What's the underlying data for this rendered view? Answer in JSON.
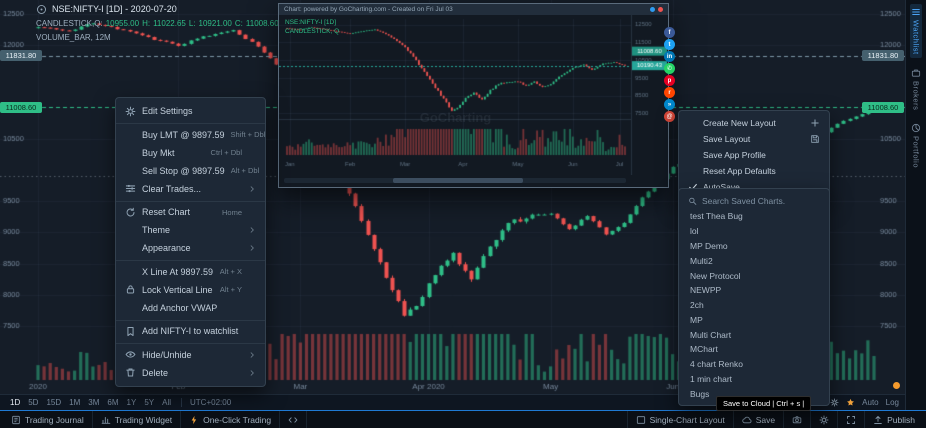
{
  "header": {
    "symbol": "NSE:NIFTY-I [1D] - 2020-07-20",
    "series_label": "CANDLESTICK,Q:",
    "ohlc": {
      "open": "10955.00",
      "h_label": "H:",
      "high": "11022.65",
      "l_label": "L:",
      "low": "10921.00",
      "c_label": "C:",
      "close": "11008.60"
    },
    "volume_line": "VOLUME_BAR, 12M"
  },
  "chart_data": {
    "type": "candlestick",
    "symbol": "NSE:NIFTY-I",
    "interval": "1D",
    "days": 138,
    "x_ticks": [
      {
        "label": "2020",
        "day": 0
      },
      {
        "label": "Feb",
        "day": 23
      },
      {
        "label": "Mar",
        "day": 43
      },
      {
        "label": "Apr 2020",
        "day": 64
      },
      {
        "label": "May",
        "day": 84
      },
      {
        "label": "Jun",
        "day": 104
      }
    ],
    "y_ticks": [
      "12500",
      "12000",
      "10500",
      "9500",
      "9000",
      "8500",
      "8000",
      "7500"
    ],
    "price_range": [
      7500,
      12500
    ],
    "anchors": [
      [
        0,
        12300
      ],
      [
        5,
        12220
      ],
      [
        9,
        12360
      ],
      [
        14,
        12240
      ],
      [
        18,
        12120
      ],
      [
        23,
        12000
      ],
      [
        27,
        12130
      ],
      [
        32,
        12240
      ],
      [
        36,
        11980
      ],
      [
        40,
        11600
      ],
      [
        43,
        11250
      ],
      [
        47,
        10480
      ],
      [
        51,
        9600
      ],
      [
        54,
        8950
      ],
      [
        57,
        8300
      ],
      [
        60,
        7650
      ],
      [
        62,
        7800
      ],
      [
        65,
        8350
      ],
      [
        68,
        8650
      ],
      [
        71,
        8280
      ],
      [
        74,
        8800
      ],
      [
        77,
        9150
      ],
      [
        81,
        9270
      ],
      [
        84,
        9300
      ],
      [
        87,
        9050
      ],
      [
        90,
        9280
      ],
      [
        93,
        8980
      ],
      [
        96,
        9150
      ],
      [
        99,
        9550
      ],
      [
        104,
        10050
      ],
      [
        108,
        10250
      ],
      [
        111,
        9950
      ],
      [
        115,
        10300
      ],
      [
        119,
        10380
      ],
      [
        123,
        10180
      ],
      [
        127,
        10450
      ],
      [
        131,
        10740
      ],
      [
        134,
        10850
      ],
      [
        137,
        11008.6
      ]
    ],
    "levels": [
      {
        "price": 11831.8,
        "label": "11831.80",
        "line_color": "#7d97a6",
        "badge_bg": "#45606e",
        "badge_fg": "#eaf2f8"
      },
      {
        "price": 11008.6,
        "label": "11008.60",
        "line_color": "#2fbe87",
        "badge_bg": "#2fbe87",
        "badge_fg": "#08291c"
      },
      {
        "price": 9897.59,
        "label": "",
        "line_color": "rgba(205,220,235,0.35)"
      }
    ],
    "colors": {
      "up": "#2fbe87",
      "down": "#ef5350",
      "vol_up": "rgba(47,190,135,0.5)",
      "vol_down": "rgba(239,83,80,0.45)",
      "grid": "rgba(141,172,199,0.06)",
      "axis_text": "#76879a"
    },
    "popup_chart": {
      "days": 124,
      "y_ticks": [
        12500,
        11500,
        10500,
        9500,
        8500,
        7500
      ],
      "x_ticks": [
        {
          "label": "Jan",
          "day": 1
        },
        {
          "label": "Feb",
          "day": 23
        },
        {
          "label": "Mar",
          "day": 43
        },
        {
          "label": "Apr",
          "day": 64
        },
        {
          "label": "May",
          "day": 84
        },
        {
          "label": "Jun",
          "day": 104
        },
        {
          "label": "Jul",
          "day": 121
        }
      ]
    }
  },
  "context_menu": {
    "items": [
      {
        "icon": "gear",
        "label": "Edit Settings"
      },
      {
        "label": "Buy LMT @ 9897.59",
        "shortcut": "Shift + Dbl",
        "sep": true
      },
      {
        "label": "Buy Mkt",
        "shortcut": "Ctrl + Dbl"
      },
      {
        "label": "Sell Stop @ 9897.59",
        "shortcut": "Alt + Dbl"
      },
      {
        "icon": "sliders",
        "label": "Clear Trades...",
        "arrow": true
      },
      {
        "icon": "reset",
        "label": "Reset Chart",
        "shortcut": "Home",
        "sep": true
      },
      {
        "label": "Theme",
        "arrow": true
      },
      {
        "label": "Appearance",
        "arrow": true
      },
      {
        "label": "X Line At 9897.59",
        "shortcut": "Alt + X",
        "sep": true
      },
      {
        "icon": "lock",
        "label": "Lock Vertical Line",
        "shortcut": "Alt + Y"
      },
      {
        "label": "Add Anchor VWAP"
      },
      {
        "icon": "bookmark",
        "label": "Add NIFTY-I to watchlist",
        "sep": true
      },
      {
        "icon": "eye",
        "label": "Hide/Unhide",
        "arrow": true,
        "sep": true
      },
      {
        "icon": "trash",
        "label": "Delete",
        "arrow": true
      }
    ]
  },
  "layout_menu": {
    "items": [
      {
        "label": "Create New Layout",
        "end_icon": "plus"
      },
      {
        "label": "Save Layout",
        "end_icon": "save"
      },
      {
        "label": "Save App Profile"
      },
      {
        "label": "Reset App Defaults"
      },
      {
        "icon": "check",
        "label": "AutoSave"
      }
    ]
  },
  "saved_charts": {
    "search_placeholder": "Search Saved Charts.",
    "items": [
      "test Thea Bug",
      "lol",
      "MP Demo",
      "Multi2",
      "New Protocol",
      "NEWPP",
      "2ch",
      "MP",
      "Multi Chart",
      "MChart",
      "4 chart Renko",
      "1 min chart",
      "Bugs"
    ]
  },
  "popup": {
    "title": "Chart: powered by GoCharting.com - Created on Fri Jul 03",
    "legend1": "NSE:NIFTY-I [1D]",
    "legend2": "CANDLESTICK, Q",
    "watermark": "GoCharting"
  },
  "share_icons": [
    {
      "name": "facebook-icon",
      "glyph": "f",
      "bg": "#3b5998"
    },
    {
      "name": "twitter-icon",
      "glyph": "t",
      "bg": "#1da1f2"
    },
    {
      "name": "linkedin-icon",
      "glyph": "in",
      "bg": "#0077b5"
    },
    {
      "name": "whatsapp-icon",
      "glyph": "✆",
      "bg": "#25d366"
    },
    {
      "name": "pinterest-icon",
      "glyph": "p",
      "bg": "#e60023"
    },
    {
      "name": "reddit-icon",
      "glyph": "r",
      "bg": "#ff4500"
    },
    {
      "name": "telegram-icon",
      "glyph": "»",
      "bg": "#0088cc"
    },
    {
      "name": "mail-icon",
      "glyph": "@",
      "bg": "#d44638"
    }
  ],
  "sidebar": {
    "tabs": [
      {
        "icon": "list",
        "label": "Watchlist",
        "active": true
      },
      {
        "icon": "briefcase",
        "label": "Brokers"
      },
      {
        "icon": "pie",
        "label": "Portfolio"
      }
    ]
  },
  "timeframe_bar": {
    "ranges": [
      {
        "label": "1D",
        "active": true
      },
      {
        "label": "5D"
      },
      {
        "label": "15D"
      },
      {
        "label": "1M"
      },
      {
        "label": "3M"
      },
      {
        "label": "6M"
      },
      {
        "label": "1Y"
      },
      {
        "label": "5Y"
      },
      {
        "label": "All"
      }
    ],
    "timezone": "UTC+02:00",
    "auto_label": "Auto",
    "log_label": "Log"
  },
  "status_bar": {
    "left": [
      {
        "icon": "journal",
        "label": "Trading Journal"
      },
      {
        "icon": "widget",
        "label": "Trading Widget"
      },
      {
        "icon": "bolt",
        "label": "One-Click Trading",
        "color": "#f2a33c"
      },
      {
        "icon": "code",
        "label": ""
      }
    ],
    "right": [
      {
        "icon": "layout",
        "label": "Single-Chart Layout"
      },
      {
        "icon": "cloud",
        "label": "Save"
      },
      {
        "icon": "camera",
        "label": ""
      },
      {
        "icon": "gear",
        "label": ""
      },
      {
        "icon": "expand",
        "label": ""
      },
      {
        "icon": "publish",
        "label": "Publish"
      }
    ]
  },
  "tooltip": "Save to Cloud | Ctrl + s |"
}
